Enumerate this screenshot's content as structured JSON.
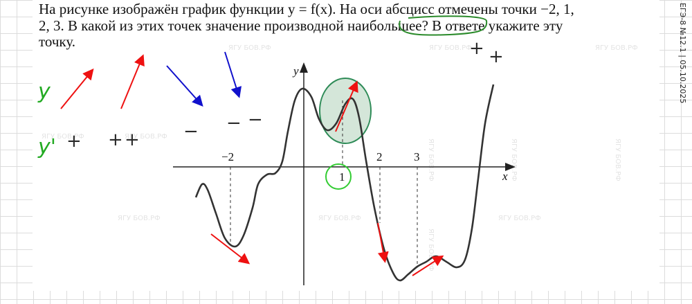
{
  "side_label": "ЕГЭ-8 №12.1 | 05.10.2025",
  "problem": {
    "lines": [
      "На рисунке изображён график функции y = f(x). На оси абсцисс отмечены точки −2, 1,",
      "2, 3. В какой из этих точек значение производной наибольшее? В ответе укажите эту",
      "точку."
    ]
  },
  "graph": {
    "x_label": "x",
    "y_label": "y",
    "ticks": [
      "−2",
      "1",
      "2",
      "3"
    ]
  },
  "annotations": {
    "y": "y",
    "y_prime": "y'",
    "plus": "+",
    "minus": "−"
  },
  "watermark": "ЯГУ БОВ.РФ"
}
